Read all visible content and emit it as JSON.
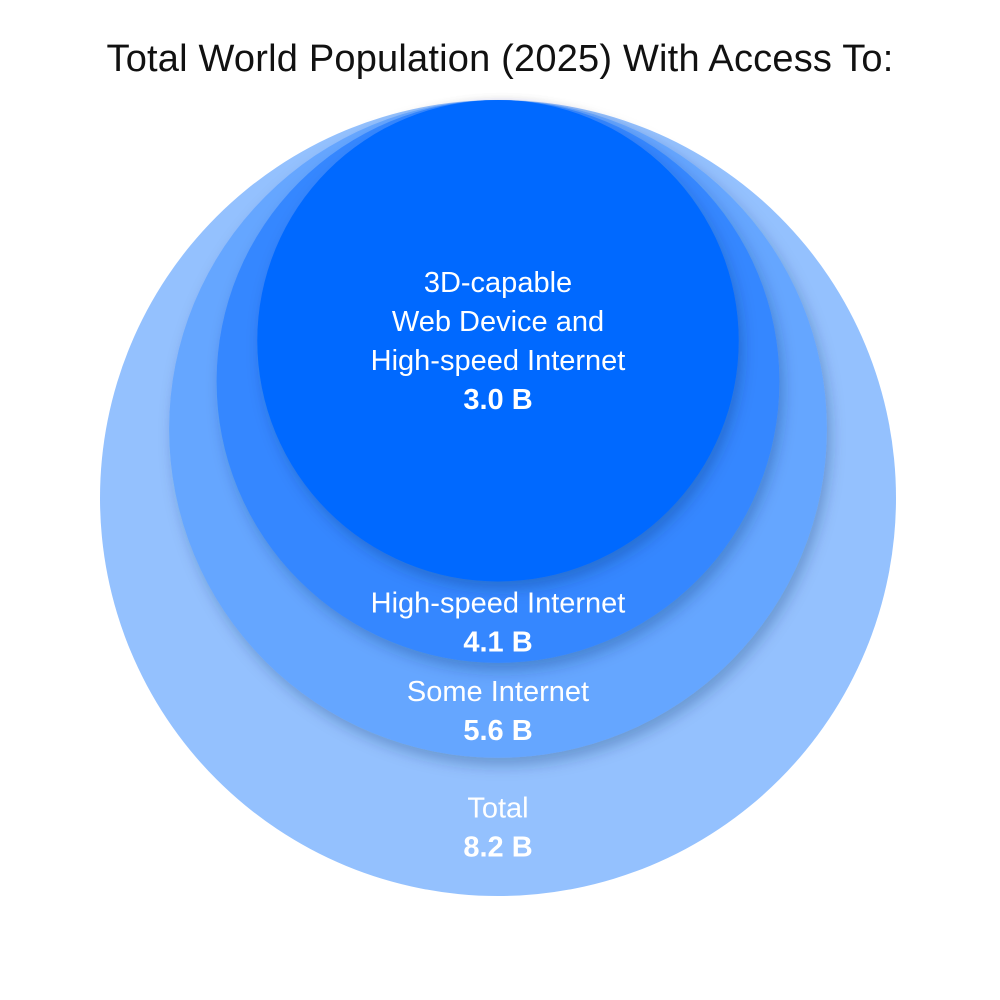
{
  "chart_data": {
    "type": "nested-circles",
    "title": "Total World Population (2025) With Access To:",
    "series": [
      {
        "name": "Total",
        "label_lines": [
          "Total"
        ],
        "value": 8.2,
        "value_label": "8.2 B",
        "color": "#94c1fe"
      },
      {
        "name": "Some Internet",
        "label_lines": [
          "Some Internet"
        ],
        "value": 5.6,
        "value_label": "5.6 B",
        "color": "#65a6ff"
      },
      {
        "name": "High-speed Internet",
        "label_lines": [
          "High-speed Internet"
        ],
        "value": 4.1,
        "value_label": "4.1 B",
        "color": "#3587ff"
      },
      {
        "name": "3D-capable Web Device and High-speed Internet",
        "label_lines": [
          "3D-capable",
          "Web Device and",
          "High-speed Internet"
        ],
        "value": 3.0,
        "value_label": "3.0 B",
        "color": "#0469ff"
      }
    ]
  }
}
